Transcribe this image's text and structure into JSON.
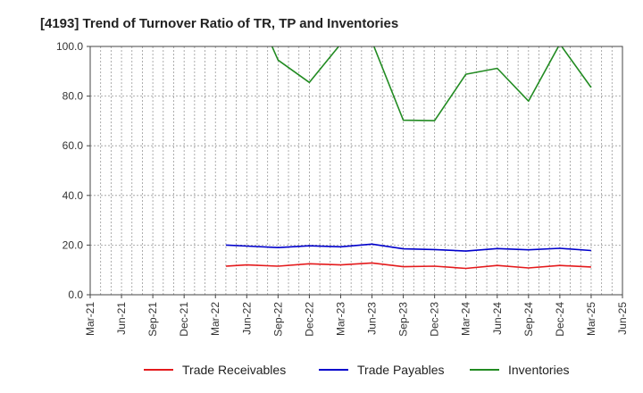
{
  "chart_data": {
    "type": "line",
    "title": "[4193]  Trend of Turnover Ratio of TR, TP and Inventories",
    "xlabel": "",
    "ylabel": "",
    "ylim": [
      0,
      100
    ],
    "yticks": [
      "0.0",
      "20.0",
      "40.0",
      "60.0",
      "80.0",
      "100.0"
    ],
    "xticks": [
      "Mar-21",
      "Jun-21",
      "Sep-21",
      "Dec-21",
      "Mar-22",
      "Jun-22",
      "Sep-22",
      "Dec-22",
      "Mar-23",
      "Jun-23",
      "Sep-23",
      "Dec-23",
      "Mar-24",
      "Jun-24",
      "Sep-24",
      "Dec-24",
      "Mar-25",
      "Jun-25"
    ],
    "x": [
      "Apr-22",
      "May-22",
      "Jun-22",
      "Jul-22",
      "Aug-22",
      "Sep-22",
      "Oct-22",
      "Nov-22",
      "Dec-22",
      "Jan-23",
      "Feb-23",
      "Mar-23",
      "Apr-23",
      "May-23",
      "Jun-23",
      "Jul-23",
      "Aug-23",
      "Sep-23",
      "Oct-23",
      "Nov-23",
      "Dec-23",
      "Jan-24",
      "Feb-24",
      "Mar-24",
      "Apr-24",
      "May-24",
      "Jun-24",
      "Jul-24",
      "Aug-24",
      "Sep-24",
      "Oct-24",
      "Nov-24",
      "Dec-24",
      "Jan-25",
      "Feb-25",
      "Mar-25"
    ],
    "grid": true,
    "legend_position": "bottom",
    "series": [
      {
        "name": "Trade Receivables",
        "color": "#e41a1c",
        "values": [
          11.5,
          null,
          12.0,
          null,
          null,
          11.5,
          null,
          null,
          12.5,
          null,
          null,
          12.0,
          null,
          null,
          12.8,
          null,
          null,
          11.3,
          null,
          null,
          11.5,
          null,
          null,
          10.6,
          null,
          null,
          11.8,
          null,
          null,
          10.8,
          null,
          null,
          11.8,
          null,
          null,
          11.2
        ]
      },
      {
        "name": "Trade Payables",
        "color": "#0000cc",
        "values": [
          20.0,
          null,
          19.6,
          null,
          null,
          19.0,
          null,
          null,
          19.7,
          null,
          null,
          19.3,
          null,
          null,
          20.4,
          null,
          null,
          18.5,
          null,
          null,
          18.2,
          null,
          null,
          17.6,
          null,
          null,
          18.6,
          null,
          null,
          18.1,
          null,
          null,
          18.7,
          null,
          null,
          17.8
        ]
      },
      {
        "name": "Inventories",
        "color": "#228b22",
        "values": [
          null,
          null,
          null,
          null,
          104.0,
          94.5,
          null,
          null,
          85.5,
          null,
          null,
          101.0,
          null,
          102.5,
          102.0,
          null,
          null,
          70.3,
          null,
          null,
          70.1,
          null,
          null,
          88.8,
          null,
          null,
          91.2,
          null,
          null,
          78.0,
          null,
          null,
          101.0,
          null,
          null,
          83.5
        ]
      }
    ]
  }
}
